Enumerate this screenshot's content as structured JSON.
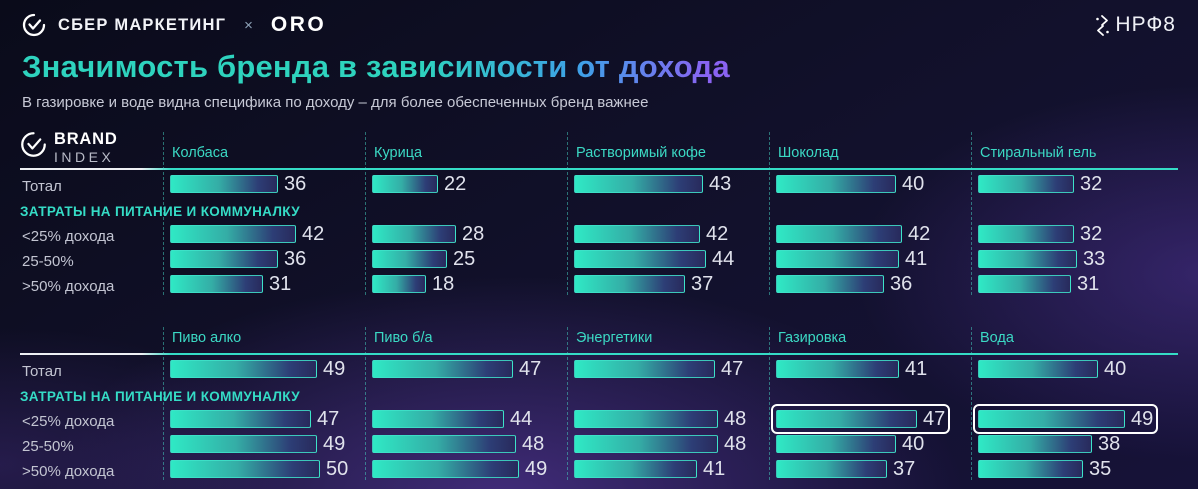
{
  "header": {
    "sber_label": "СБЕР МАРКЕТИНГ",
    "multiply_sign": "×",
    "oro_label": "ORO",
    "nrf_label": "НРФ8"
  },
  "title": "Значимость бренда в зависимости от дохода",
  "subtitle": "В газировке и воде видна специфика по доходу – для более обеспеченных бренд важнее",
  "brand_index_logo": {
    "line1": "BRAND",
    "line2": "INDEX"
  },
  "icons": {
    "sber": "check-circle-icon",
    "brand_index": "check-circle-icon",
    "nrf": "spark-chevrons-icon"
  },
  "colors": {
    "accent_teal": "#35dcc6",
    "title_gradient": [
      "#2ed3be",
      "#3fa0e8",
      "#8a63f2"
    ],
    "bar_gradient": [
      "#2fe9c5",
      "#34ada6",
      "#2d3e76",
      "#282a5c"
    ],
    "highlight_border": "#ffffff",
    "value_text": "#e0e2ec",
    "row_label_text": "#c3c5d2",
    "background_base": "#12112c",
    "background_glow": "#5a3aa0"
  },
  "chart_data": {
    "type": "bar",
    "title": "Значимость бренда в зависимости от дохода",
    "subtitle": "В газировке и воде видна специфика по доходу – для более обеспеченных бренд важнее",
    "legend": null,
    "axes_hidden": true,
    "value_range_hint": [
      0,
      60
    ],
    "blocks": [
      {
        "categories": [
          "Колбаса",
          "Курица",
          "Растворимый кофе",
          "Шоколад",
          "Стиральный гель"
        ],
        "total_row": {
          "label": "Тотал",
          "values": [
            36,
            22,
            43,
            40,
            32
          ]
        },
        "banner": "ЗАТРАТЫ НА ПИТАНИЕ И КОММУНАЛКУ",
        "income_rows": [
          {
            "label": "<25% дохода",
            "values": [
              42,
              28,
              42,
              42,
              32
            ]
          },
          {
            "label": "25-50%",
            "values": [
              36,
              25,
              44,
              41,
              33
            ]
          },
          {
            "label": ">50% дохода",
            "values": [
              31,
              18,
              37,
              36,
              31
            ]
          }
        ],
        "highlighted_cells": []
      },
      {
        "categories": [
          "Пиво алко",
          "Пиво б/а",
          "Энергетики",
          "Газировка",
          "Вода"
        ],
        "total_row": {
          "label": "Тотал",
          "values": [
            49,
            47,
            47,
            41,
            40
          ]
        },
        "banner": "ЗАТРАТЫ НА ПИТАНИЕ И КОММУНАЛКУ",
        "income_rows": [
          {
            "label": "<25% дохода",
            "values": [
              47,
              44,
              48,
              47,
              49
            ]
          },
          {
            "label": "25-50%",
            "values": [
              49,
              48,
              48,
              40,
              38
            ]
          },
          {
            "label": ">50% дохода",
            "values": [
              50,
              49,
              41,
              37,
              35
            ]
          }
        ],
        "highlighted_cells": [
          {
            "row_label": "<25% дохода",
            "category": "Газировка",
            "value": 47
          },
          {
            "row_label": "<25% дохода",
            "category": "Вода",
            "value": 49
          }
        ]
      }
    ]
  }
}
